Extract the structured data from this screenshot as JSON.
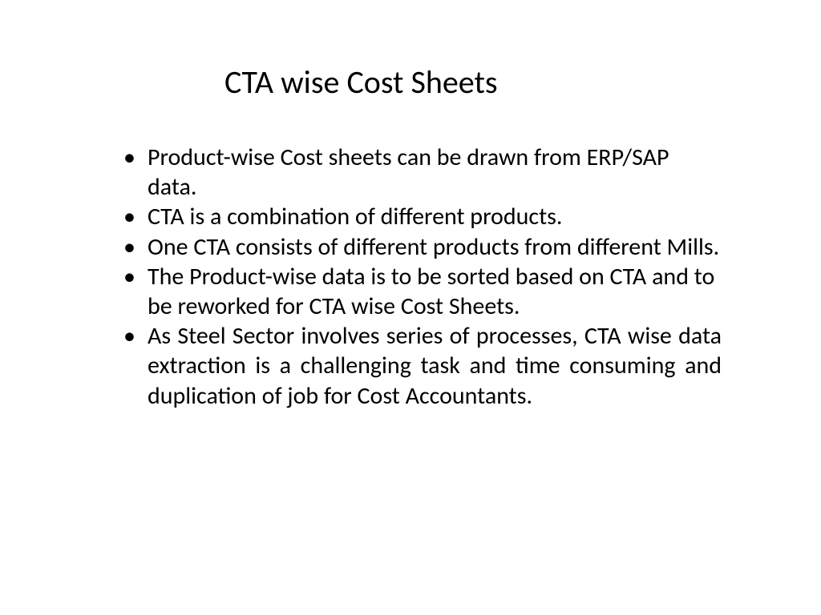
{
  "slide": {
    "title": "CTA wise Cost Sheets",
    "title_fontsize": 40,
    "title_color": "#000000",
    "background_color": "#ffffff",
    "body_fontsize": 30,
    "body_color": "#000000",
    "font_family": "Calibri",
    "bullets": [
      {
        "text": "Product-wise Cost sheets can be drawn from ERP/SAP data.",
        "justify": false
      },
      {
        "text": "CTA is a combination of different products.",
        "justify": false
      },
      {
        "text": "One CTA consists of different products from different Mills.",
        "justify": false
      },
      {
        "text": "The Product-wise data is to be sorted based on CTA and to be reworked for CTA wise Cost Sheets.",
        "justify": false
      },
      {
        "text": "As Steel Sector involves series of processes, CTA wise data extraction is a challenging task and time consuming and duplication of job for Cost Accountants.",
        "justify": true
      }
    ]
  }
}
